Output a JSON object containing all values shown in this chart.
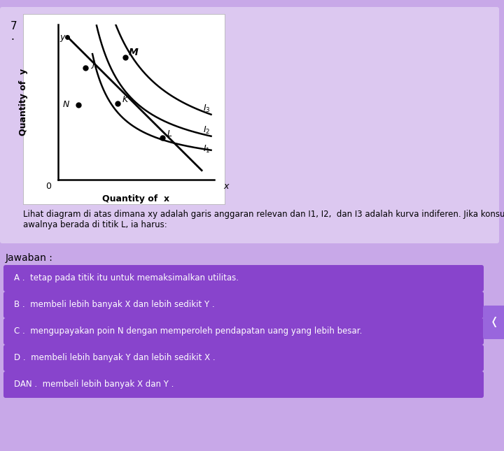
{
  "bg_color": "#c8a8e8",
  "panel_bg": "#dcc8f0",
  "chart_bg": "#ffffff",
  "question_num": "7",
  "title_text": "Lihat diagram di atas dimana xy adalah garis anggaran relevan dan I1, I2,  dan I3 adalah kurva indiferen. Jika konsumen\nawalnya berada di titik L, ia harus:",
  "answer_label": "Jawaban :",
  "options": [
    "A .  tetap pada titik itu untuk memaksimalkan utilitas.",
    "B .  membeli lebih banyak X dan lebih sedikit Y .",
    "C .  mengupayakan poin N dengan memperoleh pendapatan uang yang lebih besar.",
    "D .  membeli lebih banyak Y dan lebih sedikit X .",
    "DAN .  membeli lebih banyak X dan Y ."
  ],
  "option_bg": "#8844cc",
  "option_text_color": "#ffffff",
  "xlabel": "Quantity of  x",
  "ylabel": "Quantity of  y"
}
